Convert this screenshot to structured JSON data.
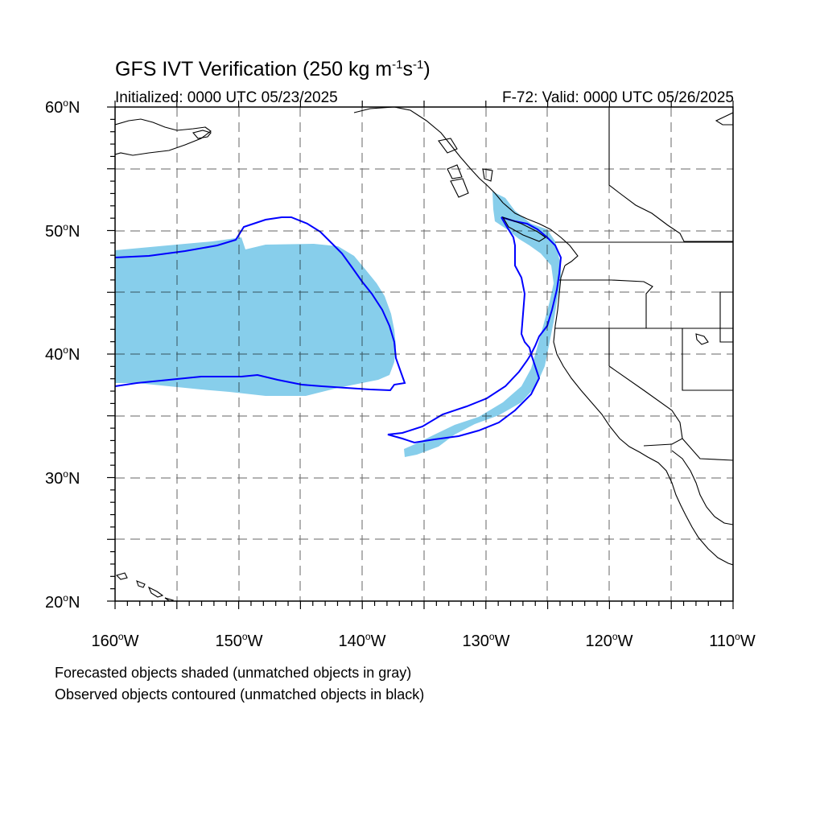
{
  "title_main": "GFS IVT Verification (250 kg m",
  "title_exp1": "-1",
  "title_mid": "s",
  "title_exp2": "-1",
  "title_end": ")",
  "initialized": "Initialized: 0000 UTC 05/23/2025",
  "valid": "F-72: Valid: 0000 UTC 05/26/2025",
  "caption_forecast": "Forecasted objects shaded (unmatched objects in gray)",
  "caption_observed": "Observed objects contoured (unmatched objects in black)",
  "degree_symbol": "o",
  "lat_labels": [
    "60",
    "50",
    "40",
    "30",
    "20"
  ],
  "lat_suffix": "N",
  "lon_labels": [
    "160",
    "150",
    "140",
    "130",
    "120",
    "110"
  ],
  "lon_suffix": "W",
  "colors": {
    "forecast_fill": "#87ceeb",
    "observed_contour": "#0000ff",
    "coastline": "#000000",
    "grid": "#000000"
  },
  "map_extent": {
    "lon_range": [
      -160,
      -110
    ],
    "lat_range": [
      20,
      60
    ],
    "grid_spacing_deg": 5,
    "grid_style": "dashed"
  }
}
